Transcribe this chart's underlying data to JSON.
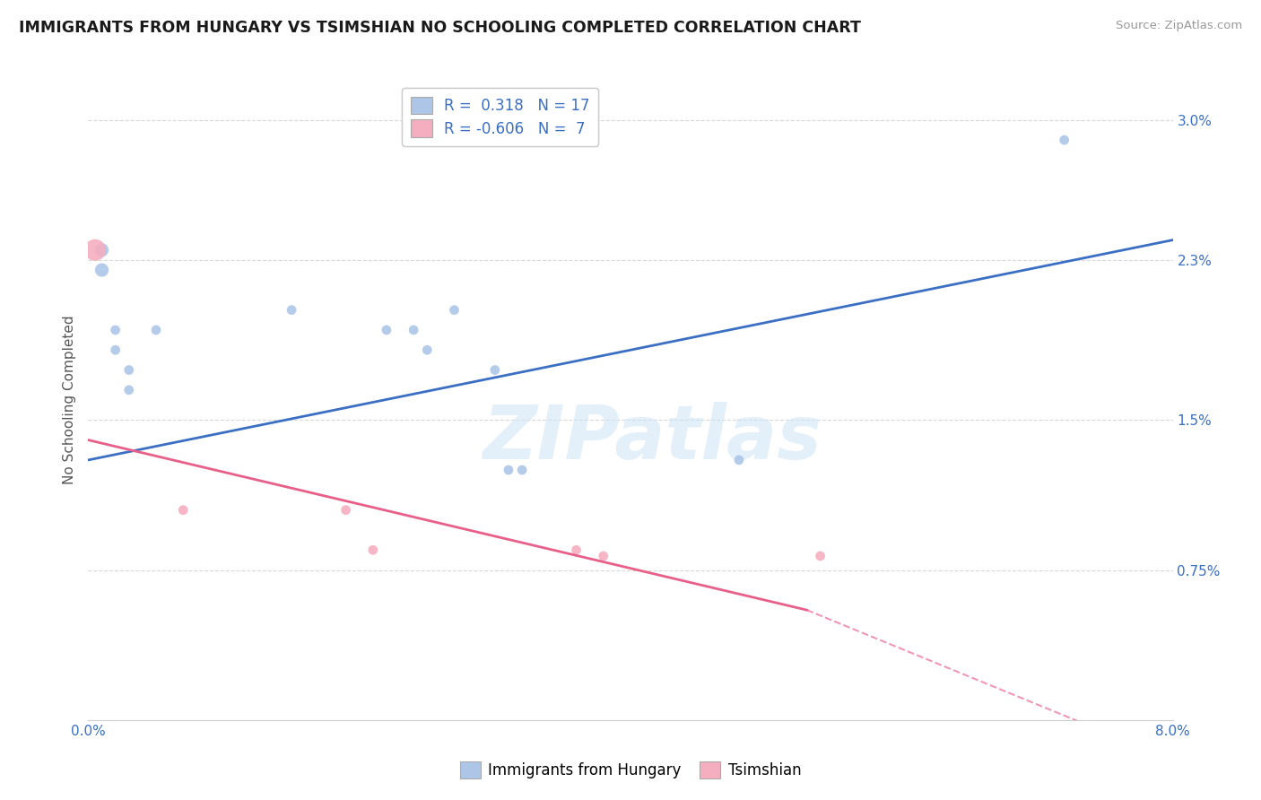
{
  "title": "IMMIGRANTS FROM HUNGARY VS TSIMSHIAN NO SCHOOLING COMPLETED CORRELATION CHART",
  "source": "Source: ZipAtlas.com",
  "ylabel": "No Schooling Completed",
  "xlim": [
    0.0,
    0.08
  ],
  "ylim": [
    0.0,
    0.032
  ],
  "ytick_vals": [
    0.0,
    0.0075,
    0.015,
    0.023,
    0.03
  ],
  "ytick_labels": [
    "",
    "0.75%",
    "1.5%",
    "2.3%",
    "3.0%"
  ],
  "xtick_vals": [
    0.0,
    0.01,
    0.02,
    0.03,
    0.04,
    0.05,
    0.06,
    0.07,
    0.08
  ],
  "xtick_labels": [
    "0.0%",
    "",
    "",
    "",
    "",
    "",
    "",
    "",
    "8.0%"
  ],
  "blue_color": "#adc6e8",
  "pink_color": "#f5aec0",
  "blue_line_color": "#3a6fc4",
  "pink_line_color": "#e8608a",
  "legend_blue_label": "Immigrants from Hungary",
  "legend_pink_label": "Tsimshian",
  "blue_R": "0.318",
  "blue_N": "17",
  "pink_R": "-0.606",
  "pink_N": "7",
  "watermark_text": "ZIPatlas",
  "blue_points": [
    [
      0.001,
      0.0235,
      120
    ],
    [
      0.001,
      0.0225,
      120
    ],
    [
      0.002,
      0.0195,
      60
    ],
    [
      0.002,
      0.0185,
      60
    ],
    [
      0.003,
      0.0175,
      60
    ],
    [
      0.003,
      0.0165,
      60
    ],
    [
      0.005,
      0.0195,
      60
    ],
    [
      0.015,
      0.0205,
      60
    ],
    [
      0.022,
      0.0195,
      60
    ],
    [
      0.024,
      0.0195,
      60
    ],
    [
      0.025,
      0.0185,
      60
    ],
    [
      0.027,
      0.0205,
      60
    ],
    [
      0.03,
      0.0175,
      60
    ],
    [
      0.031,
      0.0125,
      60
    ],
    [
      0.032,
      0.0125,
      60
    ],
    [
      0.048,
      0.013,
      60
    ],
    [
      0.072,
      0.029,
      60
    ]
  ],
  "pink_points": [
    [
      0.0005,
      0.0235,
      300
    ],
    [
      0.007,
      0.0105,
      60
    ],
    [
      0.019,
      0.0105,
      60
    ],
    [
      0.021,
      0.0085,
      60
    ],
    [
      0.036,
      0.0085,
      60
    ],
    [
      0.038,
      0.0082,
      60
    ],
    [
      0.054,
      0.0082,
      60
    ]
  ],
  "blue_trendline": [
    [
      0.0,
      0.013
    ],
    [
      0.08,
      0.024
    ]
  ],
  "pink_trendline_solid": [
    [
      0.0,
      0.014
    ],
    [
      0.053,
      0.0055
    ]
  ],
  "pink_trendline_dash": [
    [
      0.053,
      0.0055
    ],
    [
      0.08,
      -0.002
    ]
  ],
  "grid_color": "#d8d8d8",
  "spine_color": "#cccccc"
}
